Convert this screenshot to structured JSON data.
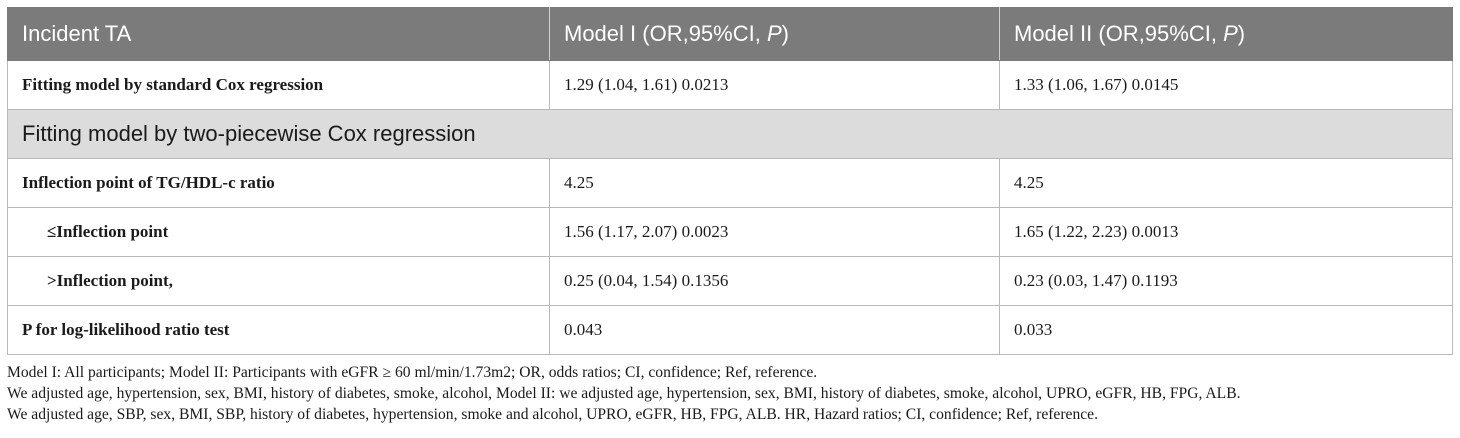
{
  "table": {
    "headers": {
      "col1": "Incident TA",
      "col2_prefix": "Model I (OR,95%CI, ",
      "col2_italic": "P",
      "col2_suffix": ")",
      "col3_prefix": "Model II (OR,95%CI, ",
      "col3_italic": "P",
      "col3_suffix": ")"
    },
    "row_standard": {
      "label": "Fitting model by standard Cox regression",
      "model1": "1.29 (1.04, 1.61) 0.0213",
      "model2": "1.33 (1.06, 1.67) 0.0145"
    },
    "section_title": "Fitting model by two-piecewise Cox regression",
    "row_inflection": {
      "label": "Inflection point of TG/HDL-c ratio",
      "model1": "4.25",
      "model2": "4.25"
    },
    "row_below": {
      "label": "≤Inflection point",
      "model1": "1.56 (1.17, 2.07) 0.0023",
      "model2": "1.65 (1.22, 2.23) 0.0013"
    },
    "row_above": {
      "label": ">Inflection point,",
      "model1": "0.25 (0.04, 1.54) 0.1356",
      "model2": "0.23 (0.03, 1.47) 0.1193"
    },
    "row_loglik": {
      "label": "P for log-likelihood ratio test",
      "model1": "0.043",
      "model2": "0.033"
    }
  },
  "footnotes": [
    "Model I: All participants; Model II: Participants with eGFR ≥ 60 ml/min/1.73m2; OR, odds ratios; CI, confidence; Ref, reference.",
    "We adjusted age, hypertension, sex, BMI, history of diabetes, smoke, alcohol, Model II: we adjusted age, hypertension, sex, BMI, history of diabetes, smoke, alcohol, UPRO, eGFR, HB, FPG, ALB.",
    "We adjusted age, SBP, sex, BMI, SBP, history of diabetes, hypertension, smoke and alcohol, UPRO, eGFR, HB, FPG, ALB. HR, Hazard ratios; CI, confidence; Ref, reference."
  ]
}
